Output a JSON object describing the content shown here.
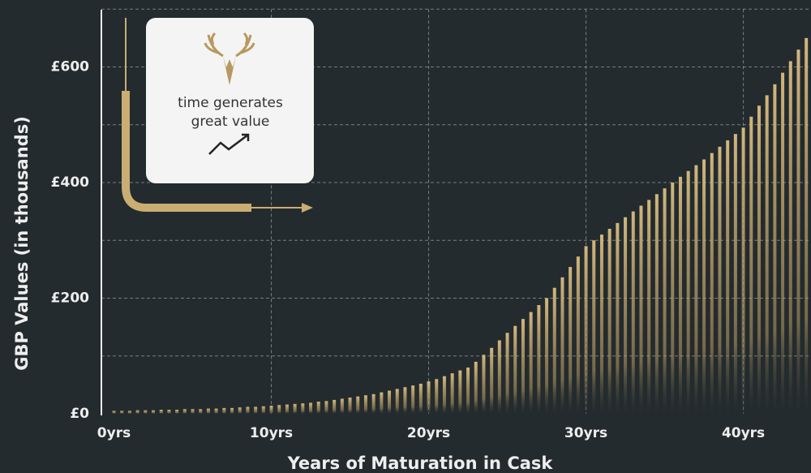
{
  "chart_data": {
    "type": "bar",
    "title_annotation": [
      "time generates",
      "great value"
    ],
    "ylabel": "GBP Values (in thousands)",
    "xlabel": "Years of Maturation in Cask",
    "color": "#c9ad72",
    "xlim": [
      -0.8,
      44.3
    ],
    "xticks": [
      {
        "value": 0,
        "label": "0yrs"
      },
      {
        "value": 10,
        "label": "10yrs"
      },
      {
        "value": 20,
        "label": "20yrs"
      },
      {
        "value": 30,
        "label": "30yrs"
      },
      {
        "value": 40,
        "label": "40yrs"
      }
    ],
    "ylim": [
      0,
      700
    ],
    "yticks": [
      {
        "value": 0,
        "label": "£0"
      },
      {
        "value": 200,
        "label": "£200"
      },
      {
        "value": 400,
        "label": "£400"
      },
      {
        "value": 600,
        "label": "£600"
      }
    ],
    "minor_yticks": [
      100,
      300,
      500,
      700
    ],
    "grid": true,
    "x": [
      0,
      0.5,
      1,
      1.5,
      2,
      2.5,
      3,
      3.5,
      4,
      4.5,
      5,
      5.5,
      6,
      6.5,
      7,
      7.5,
      8,
      8.5,
      9,
      9.5,
      10,
      10.5,
      11,
      11.5,
      12,
      12.5,
      13,
      13.5,
      14,
      14.5,
      15,
      15.5,
      16,
      16.5,
      17,
      17.5,
      18,
      18.5,
      19,
      19.5,
      20,
      20.5,
      21,
      21.5,
      22,
      22.5,
      23,
      23.5,
      24,
      24.5,
      25,
      25.5,
      26,
      26.5,
      27,
      27.5,
      28,
      28.5,
      29,
      29.5,
      30,
      30.5,
      31,
      31.5,
      32,
      32.5,
      33,
      33.5,
      34,
      34.5,
      35,
      35.5,
      36,
      36.5,
      37,
      37.5,
      38,
      38.5,
      39,
      39.5,
      40,
      40.5,
      41,
      41.5,
      42,
      42.5,
      43,
      43.5,
      44
    ],
    "values": [
      5,
      5,
      5,
      6,
      6,
      6,
      7,
      7,
      7,
      8,
      8,
      8,
      9,
      9,
      10,
      10,
      11,
      12,
      12,
      13,
      14,
      15,
      16,
      17,
      18,
      19,
      21,
      22,
      24,
      26,
      28,
      30,
      32,
      34,
      37,
      40,
      43,
      46,
      49,
      52,
      56,
      60,
      65,
      70,
      75,
      80,
      90,
      102,
      114,
      127,
      140,
      152,
      164,
      176,
      188,
      200,
      218,
      236,
      254,
      272,
      290,
      300,
      310,
      320,
      330,
      340,
      350,
      360,
      370,
      380,
      390,
      400,
      410,
      420,
      430,
      440,
      451,
      462,
      473,
      484,
      495,
      514,
      533,
      551,
      570,
      590,
      610,
      630,
      650
    ]
  }
}
